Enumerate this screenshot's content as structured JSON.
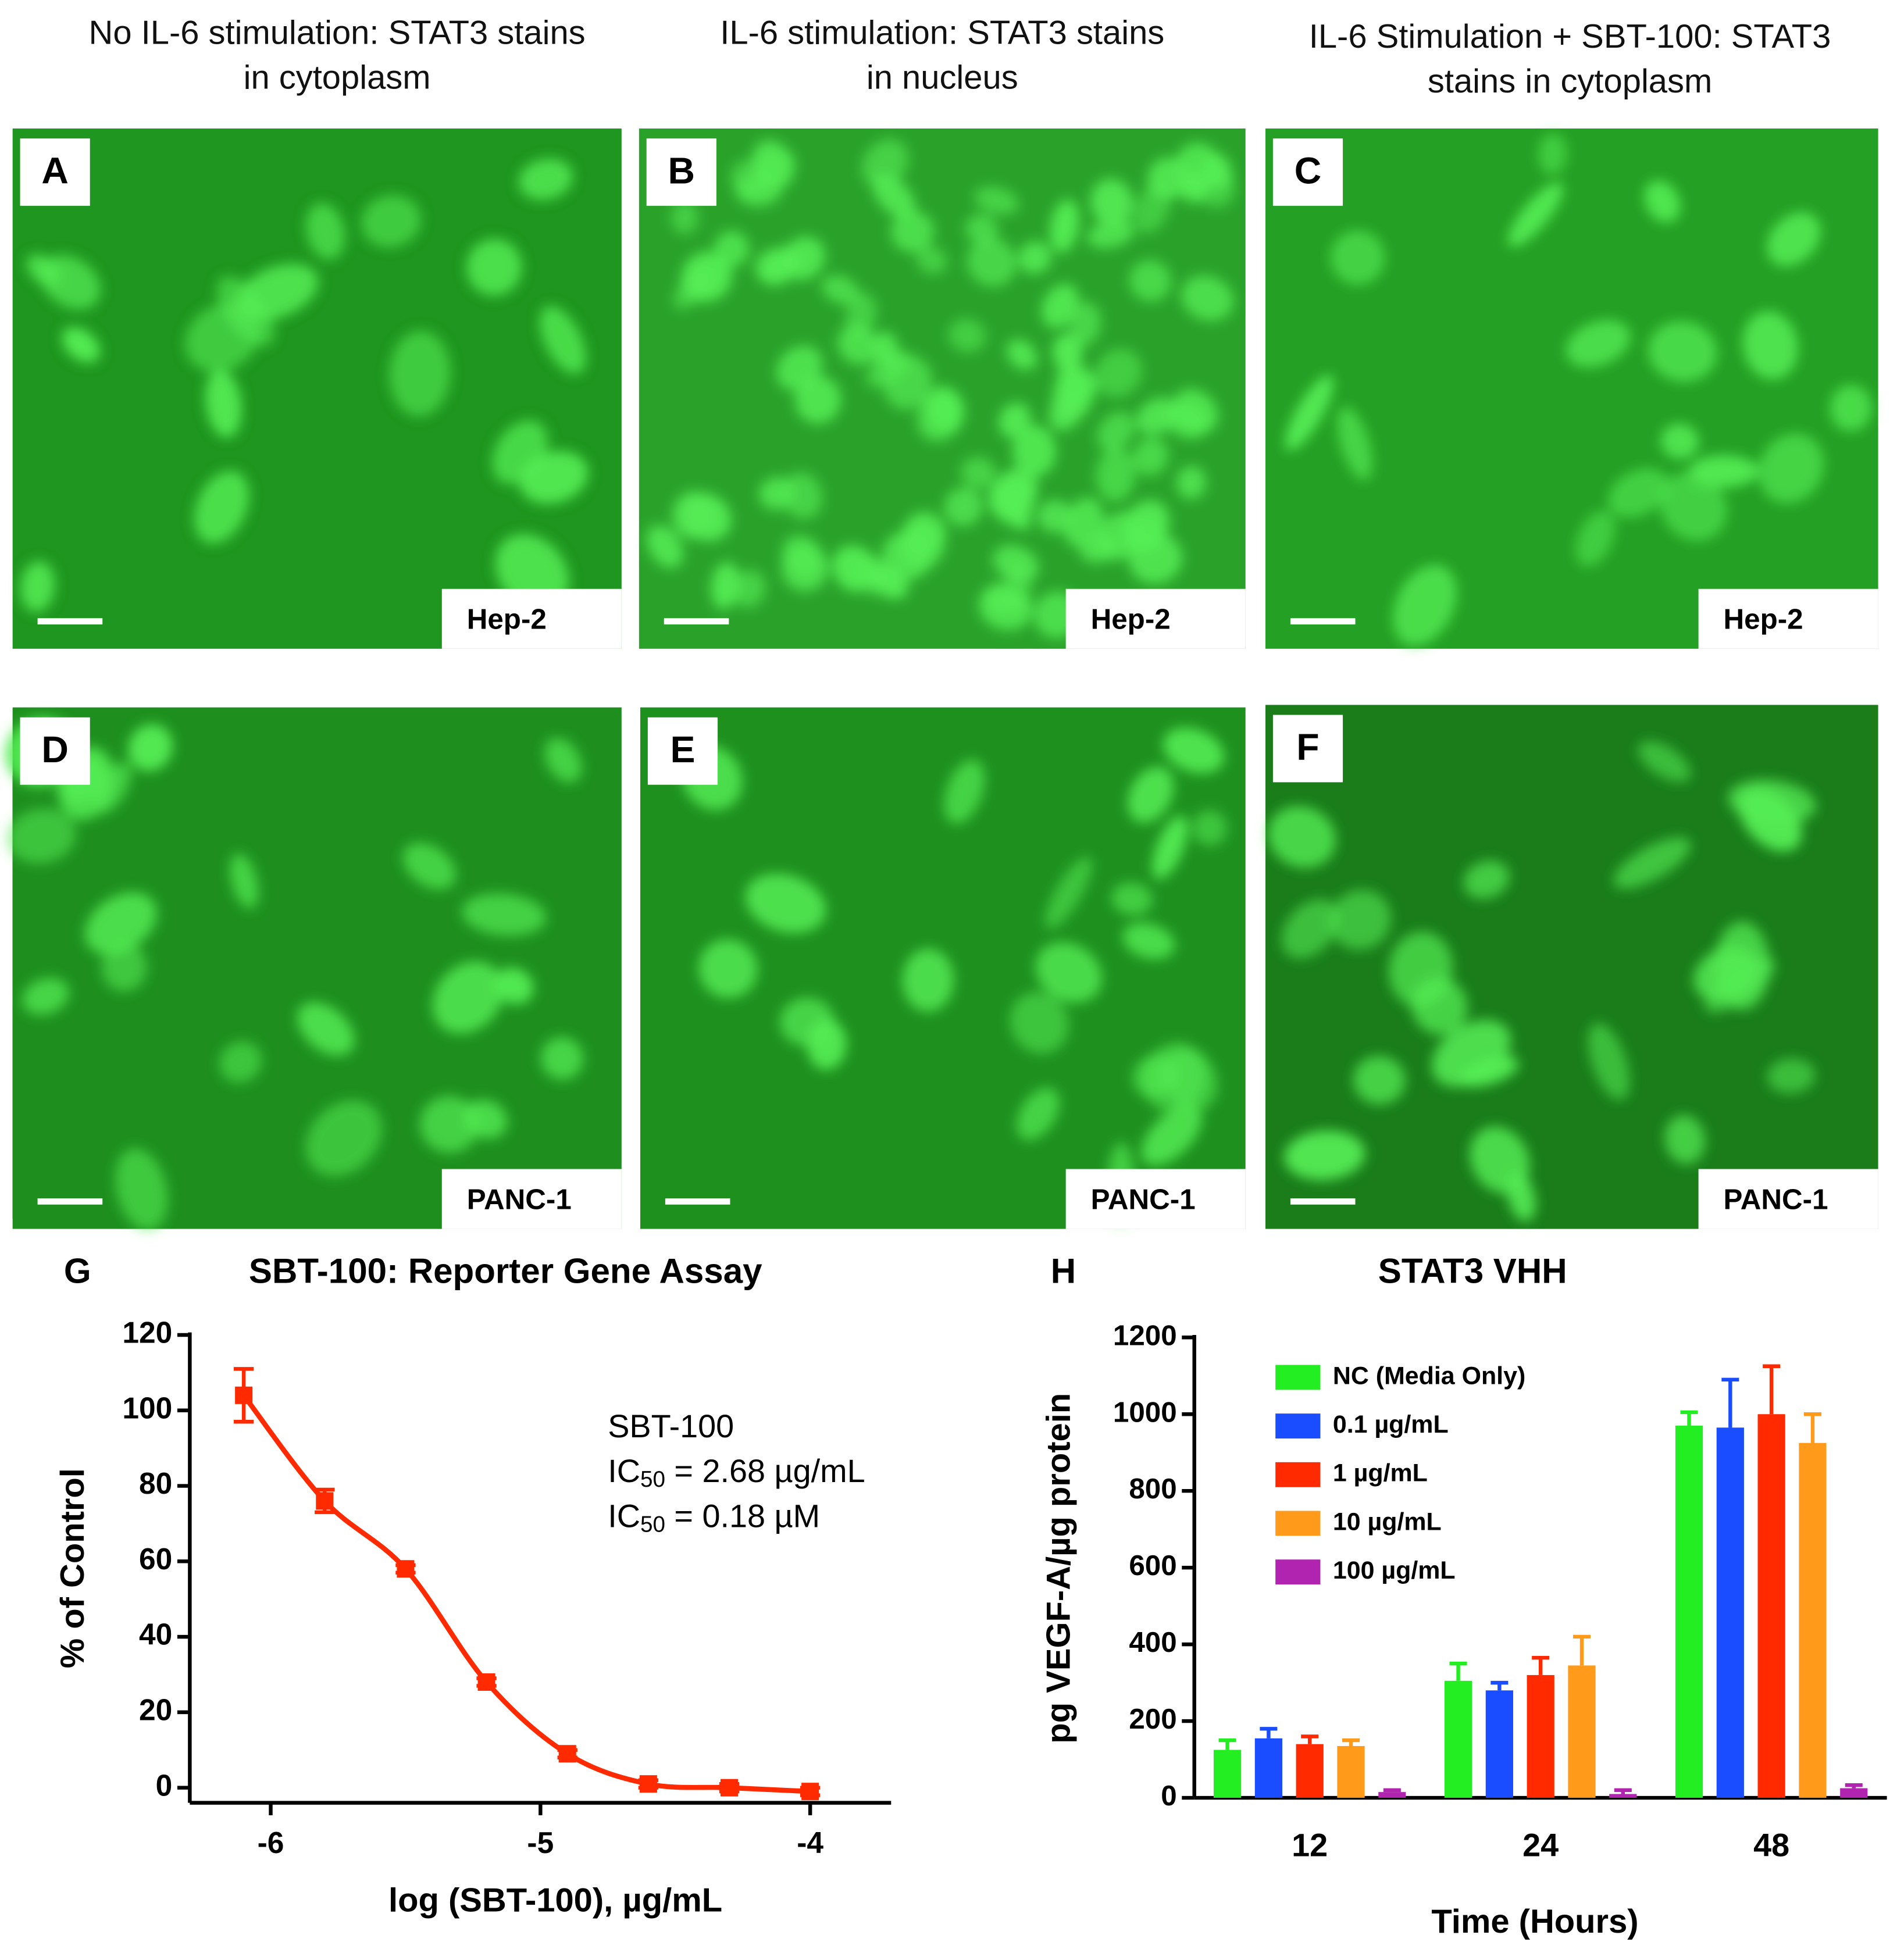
{
  "figure": {
    "column_titles": [
      [
        "No IL-6 stimulation: STAT3 stains",
        "in cytoplasm"
      ],
      [
        "IL-6 stimulation: STAT3 stains",
        "in nucleus"
      ],
      [
        "IL-6 Stimulation + SBT-100: STAT3",
        "stains in cytoplasm"
      ]
    ],
    "panels": [
      {
        "label": "A",
        "cell_line": "Hep-2"
      },
      {
        "label": "B",
        "cell_line": "Hep-2"
      },
      {
        "label": "C",
        "cell_line": "Hep-2"
      },
      {
        "label": "D",
        "cell_line": "PANC-1"
      },
      {
        "label": "E",
        "cell_line": "PANC-1"
      },
      {
        "label": "F",
        "cell_line": "PANC-1"
      }
    ]
  },
  "chart_data": [
    {
      "type": "scatter",
      "label": "G",
      "title": "SBT-100: Reporter Gene Assay",
      "x_label": "log (SBT-100), µg/mL",
      "y_label": "% of Control",
      "x": [
        -6.1,
        -5.8,
        -5.5,
        -5.2,
        -4.9,
        -4.6,
        -4.3,
        -4.0
      ],
      "values": [
        104,
        76,
        58,
        28,
        9,
        1,
        0,
        -1
      ],
      "errors": [
        7,
        3,
        1,
        1,
        1,
        1,
        1,
        1
      ],
      "color": "#ff2a00",
      "annotation": [
        [
          "SBT-100"
        ],
        [
          "IC",
          "50",
          " = 2.68 µg/mL"
        ],
        [
          "IC",
          "50",
          " = 0.18 µM"
        ]
      ],
      "xlim": [
        -6.3,
        -3.7
      ],
      "xticks": [
        -6,
        -5,
        -4
      ],
      "ylim": [
        -4,
        120
      ],
      "yticks": [
        0,
        20,
        40,
        60,
        80,
        100,
        120
      ]
    },
    {
      "type": "bar",
      "label": "H",
      "title": "STAT3 VHH",
      "x_label": "Time (Hours)",
      "y_label": "pg VEGF-A/µg protein",
      "categories": [
        "12",
        "24",
        "48"
      ],
      "series": [
        {
          "name": "NC (Media Only)",
          "color": "#22ee22",
          "values": [
            125,
            305,
            970
          ],
          "errors": [
            25,
            45,
            35
          ]
        },
        {
          "name": "0.1 µg/mL",
          "color": "#1a4dff",
          "values": [
            155,
            280,
            965
          ],
          "errors": [
            25,
            20,
            125
          ]
        },
        {
          "name": "1 µg/mL",
          "color": "#ff2a00",
          "values": [
            140,
            320,
            1000
          ],
          "errors": [
            20,
            45,
            125
          ]
        },
        {
          "name": "10 µg/mL",
          "color": "#ff9a1a",
          "values": [
            135,
            345,
            925
          ],
          "errors": [
            15,
            75,
            75
          ]
        },
        {
          "name": "100 µg/mL",
          "color": "#b024b0",
          "values": [
            15,
            10,
            25
          ],
          "errors": [
            5,
            10,
            8
          ]
        }
      ],
      "ylim": [
        0,
        1200
      ],
      "yticks": [
        0,
        200,
        400,
        600,
        800,
        1000,
        1200
      ]
    }
  ]
}
